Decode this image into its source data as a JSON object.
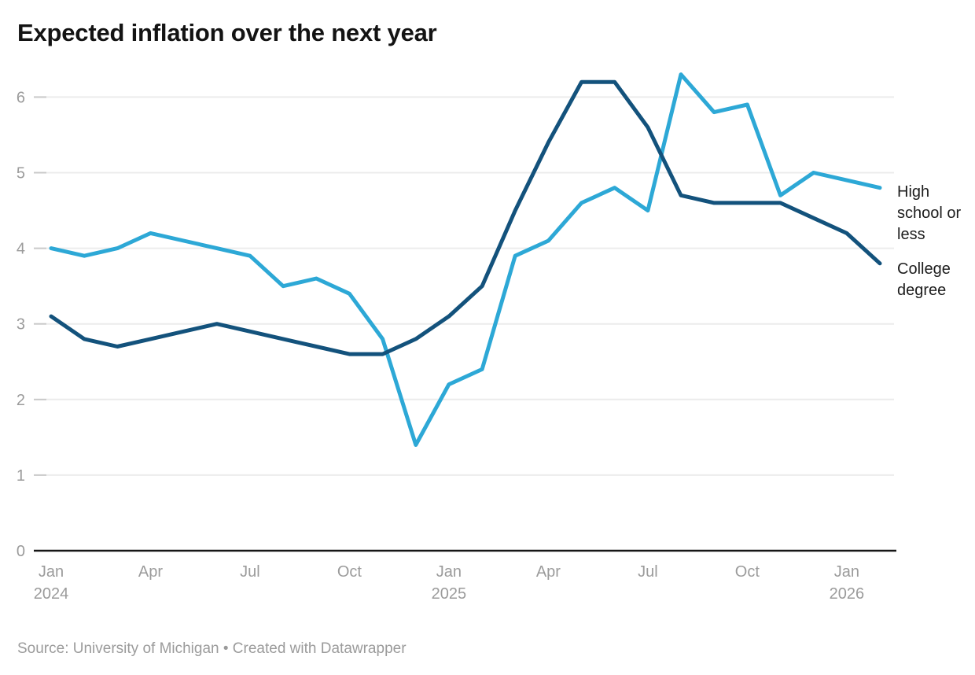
{
  "title": "Expected inflation over the next year",
  "source_line": "Source: University of Michigan • Created with Datawrapper",
  "chart_data": {
    "type": "line",
    "title": "Expected inflation over the next year",
    "xlabel": "",
    "ylabel": "",
    "ylim": [
      0,
      6.55
    ],
    "grid": "horizontal",
    "legend_position": "right-direct-labels",
    "categories": [
      "Jan 2024",
      "Feb 2024",
      "Mar 2024",
      "Apr 2024",
      "May 2024",
      "Jun 2024",
      "Jul 2024",
      "Aug 2024",
      "Sep 2024",
      "Oct 2024",
      "Nov 2024",
      "Dec 2024",
      "Jan 2025",
      "Feb 2025",
      "Mar 2025",
      "Apr 2025",
      "May 2025",
      "Jun 2025",
      "Jul 2025",
      "Aug 2025",
      "Sep 2025",
      "Oct 2025",
      "Nov 2025",
      "Dec 2025",
      "Jan 2026",
      "Feb 2026"
    ],
    "series": [
      {
        "name": "High school or less",
        "color": "#2da8d6",
        "values": [
          4.0,
          3.9,
          4.0,
          4.2,
          4.1,
          4.0,
          3.9,
          3.5,
          3.6,
          3.4,
          2.8,
          1.4,
          2.2,
          2.4,
          3.9,
          4.1,
          4.6,
          4.8,
          4.5,
          6.3,
          5.8,
          5.9,
          4.7,
          5.0,
          4.9,
          4.8
        ]
      },
      {
        "name": "College degree",
        "color": "#13527c",
        "values": [
          3.1,
          2.8,
          2.7,
          2.8,
          2.9,
          3.0,
          2.9,
          2.8,
          2.7,
          2.6,
          2.6,
          2.8,
          3.1,
          3.5,
          4.5,
          5.4,
          6.2,
          6.2,
          5.6,
          4.7,
          4.6,
          4.6,
          4.6,
          4.4,
          4.2,
          3.8
        ]
      }
    ],
    "y_ticks": [
      0,
      1,
      2,
      3,
      4,
      5,
      6
    ],
    "x_ticks": [
      {
        "month_index": 0,
        "label": "Jan",
        "year": "2024"
      },
      {
        "month_index": 3,
        "label": "Apr",
        "year": ""
      },
      {
        "month_index": 6,
        "label": "Jul",
        "year": ""
      },
      {
        "month_index": 9,
        "label": "Oct",
        "year": ""
      },
      {
        "month_index": 12,
        "label": "Jan",
        "year": "2025"
      },
      {
        "month_index": 15,
        "label": "Apr",
        "year": ""
      },
      {
        "month_index": 18,
        "label": "Jul",
        "year": ""
      },
      {
        "month_index": 21,
        "label": "Oct",
        "year": ""
      },
      {
        "month_index": 24,
        "label": "Jan",
        "year": "2026"
      }
    ],
    "colors": {
      "grid_line": "#ececec",
      "tick_dash": "#c9c9c9",
      "axis_line": "#161616",
      "tick_label": "#9b9b9b"
    }
  }
}
